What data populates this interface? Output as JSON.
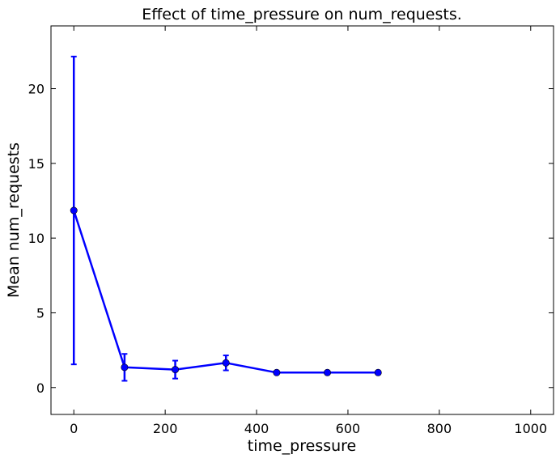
{
  "chart_data": {
    "type": "line",
    "title": "Effect of time_pressure on num_requests.",
    "xlabel": "time_pressure",
    "ylabel": "Mean num_requests",
    "xlim": [
      -50,
      1050
    ],
    "ylim": [
      -1.8,
      24.2
    ],
    "xticks": [
      0,
      200,
      400,
      600,
      800,
      1000
    ],
    "yticks": [
      0,
      5,
      10,
      15,
      20
    ],
    "xtick_labels": [
      "0",
      "200",
      "400",
      "600",
      "800",
      "1000"
    ],
    "ytick_labels": [
      "0",
      "5",
      "10",
      "15",
      "20"
    ],
    "grid": false,
    "legend": "none",
    "series": [
      {
        "color": "#0000ff",
        "x": [
          0,
          111,
          222,
          333,
          444,
          555,
          666
        ],
        "y": [
          11.85,
          1.35,
          1.2,
          1.65,
          1.0,
          1.0,
          1.0
        ],
        "err_low": [
          1.55,
          0.45,
          0.6,
          1.15,
          1.0,
          1.0,
          1.0
        ],
        "err_high": [
          22.15,
          2.25,
          1.8,
          2.15,
          1.0,
          1.0,
          1.0
        ]
      }
    ]
  }
}
